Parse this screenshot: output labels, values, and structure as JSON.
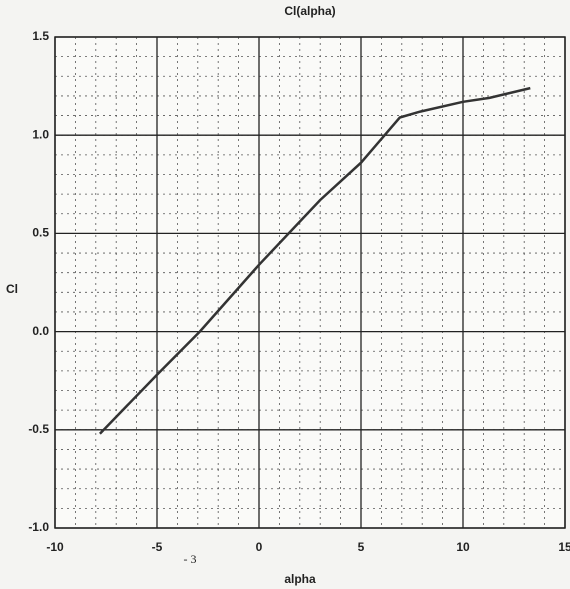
{
  "chart_data": {
    "type": "line",
    "title": "Cl(alpha)",
    "x_label": "alpha",
    "y_label": "Cl",
    "x": [
      -7.8,
      -5,
      -2.9,
      0,
      3,
      5,
      6.9,
      7.9,
      10,
      11.3,
      13.3
    ],
    "series": [
      {
        "name": "Cl",
        "color": "#333333",
        "values": [
          -0.52,
          -0.22,
          0,
          0.34,
          0.67,
          0.86,
          1.09,
          1.12,
          1.17,
          1.19,
          1.24
        ]
      }
    ],
    "xlim": [
      -10,
      15
    ],
    "xticks": [
      -10,
      -5,
      0,
      5,
      10,
      15
    ],
    "ylim": [
      -1,
      1.5
    ],
    "yticks": [
      {
        "value": -1,
        "label": "-1.0"
      },
      -0.5,
      {
        "value": 0,
        "label": "0.0"
      },
      0.5,
      {
        "value": 1,
        "label": "1.0"
      },
      1.5
    ],
    "grid": true
  },
  "page_number": "- 3"
}
